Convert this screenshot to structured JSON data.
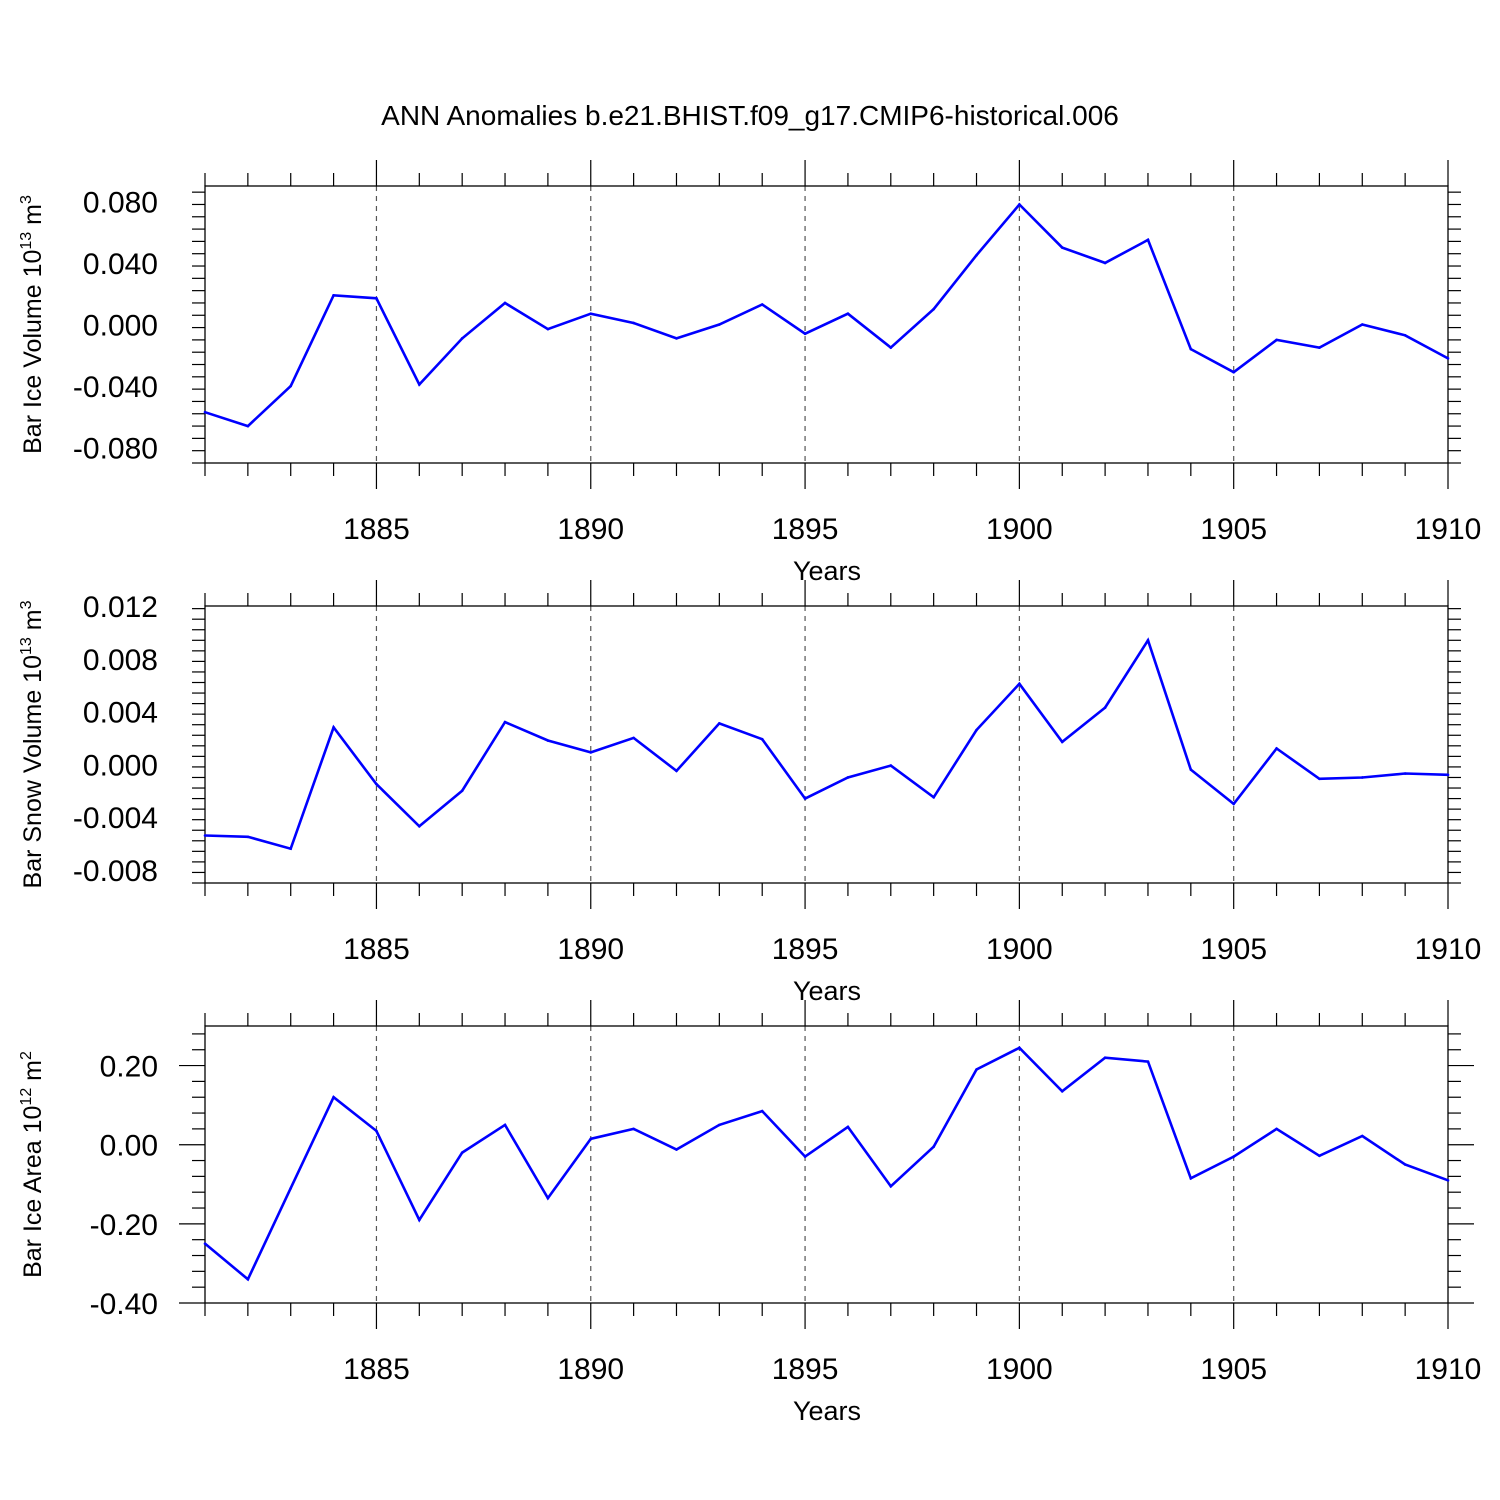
{
  "title": "ANN Anomalies b.e21.BHIST.f09_g17.CMIP6-historical.006",
  "colors": {
    "line": "#0000ff",
    "axis": "#000000",
    "grid": "#555555"
  },
  "chart_data": [
    {
      "type": "line",
      "title": "ANN Anomalies b.e21.BHIST.f09_g17.CMIP6-historical.006",
      "xlabel": "Years",
      "ylabel": {
        "text": "Bar Ice Volume 10",
        "exp": "13",
        "unit": " m",
        "unit_exp": "3"
      },
      "xlim": [
        1881,
        1910
      ],
      "ylim": [
        -0.09,
        0.09
      ],
      "xticks": [
        1885,
        1890,
        1895,
        1900,
        1905,
        1910
      ],
      "xtick_labels": [
        "1885",
        "1890",
        "1895",
        "1900",
        "1905",
        "1910"
      ],
      "yticks": [
        -0.08,
        -0.04,
        0.0,
        0.04,
        0.08
      ],
      "ytick_labels": [
        "-0.080",
        "-0.040",
        "0.000",
        "0.040",
        "0.080"
      ],
      "grid": "vertical-dashed-at-major",
      "x": [
        1881,
        1882,
        1883,
        1884,
        1885,
        1886,
        1887,
        1888,
        1889,
        1890,
        1891,
        1892,
        1893,
        1894,
        1895,
        1896,
        1897,
        1898,
        1899,
        1900,
        1901,
        1902,
        1903,
        1904,
        1905,
        1906,
        1907,
        1908,
        1909,
        1910
      ],
      "series": [
        {
          "name": "Bar Ice Volume",
          "values": [
            -0.057,
            -0.066,
            -0.04,
            0.019,
            0.017,
            -0.039,
            -0.009,
            0.014,
            -0.003,
            0.007,
            0.001,
            -0.009,
            0.0,
            0.013,
            -0.006,
            0.007,
            -0.015,
            0.01,
            0.045,
            0.078,
            0.05,
            0.04,
            0.055,
            -0.016,
            -0.031,
            -0.01,
            -0.015,
            0.0,
            -0.007,
            -0.022
          ]
        }
      ]
    },
    {
      "type": "line",
      "xlabel": "Years",
      "ylabel": {
        "text": "Bar Snow Volume 10",
        "exp": "13",
        "unit": " m",
        "unit_exp": "3"
      },
      "xlim": [
        1881,
        1910
      ],
      "ylim": [
        -0.009,
        0.012
      ],
      "xticks": [
        1885,
        1890,
        1895,
        1900,
        1905,
        1910
      ],
      "xtick_labels": [
        "1885",
        "1890",
        "1895",
        "1900",
        "1905",
        "1910"
      ],
      "yticks": [
        -0.008,
        -0.004,
        0.0,
        0.004,
        0.008,
        0.012
      ],
      "ytick_labels": [
        "-0.008",
        "-0.004",
        "0.000",
        "0.004",
        "0.008",
        "0.012"
      ],
      "grid": "vertical-dashed-at-major",
      "x": [
        1881,
        1882,
        1883,
        1884,
        1885,
        1886,
        1887,
        1888,
        1889,
        1890,
        1891,
        1892,
        1893,
        1894,
        1895,
        1896,
        1897,
        1898,
        1899,
        1900,
        1901,
        1902,
        1903,
        1904,
        1905,
        1906,
        1907,
        1908,
        1909,
        1910
      ],
      "series": [
        {
          "name": "Bar Snow Volume",
          "values": [
            -0.0054,
            -0.0055,
            -0.0064,
            0.0028,
            -0.0015,
            -0.0047,
            -0.002,
            0.0032,
            0.0018,
            0.0009,
            0.002,
            -0.0005,
            0.0031,
            0.0019,
            -0.0026,
            -0.001,
            -0.0001,
            -0.0025,
            0.0026,
            0.0061,
            0.0017,
            0.0043,
            0.0094,
            -0.0004,
            -0.003,
            0.0012,
            -0.0011,
            -0.001,
            -0.0007,
            -0.0008
          ]
        }
      ]
    },
    {
      "type": "line",
      "xlabel": "Years",
      "ylabel": {
        "text": "Bar Ice Area 10",
        "exp": "12",
        "unit": " m",
        "unit_exp": "2"
      },
      "xlim": [
        1881,
        1910
      ],
      "ylim": [
        -0.4,
        0.3
      ],
      "xticks": [
        1885,
        1890,
        1895,
        1900,
        1905,
        1910
      ],
      "xtick_labels": [
        "1885",
        "1890",
        "1895",
        "1900",
        "1905",
        "1910"
      ],
      "yticks": [
        -0.4,
        -0.2,
        0.0,
        0.2
      ],
      "ytick_labels": [
        "-0.40",
        "-0.20",
        "0.00",
        "0.20"
      ],
      "grid": "vertical-dashed-at-major",
      "x": [
        1881,
        1882,
        1883,
        1884,
        1885,
        1886,
        1887,
        1888,
        1889,
        1890,
        1891,
        1892,
        1893,
        1894,
        1895,
        1896,
        1897,
        1898,
        1899,
        1900,
        1901,
        1902,
        1903,
        1904,
        1905,
        1906,
        1907,
        1908,
        1909,
        1910
      ],
      "series": [
        {
          "name": "Bar Ice Area",
          "values": [
            -0.25,
            -0.34,
            -0.11,
            0.12,
            0.035,
            -0.19,
            -0.02,
            0.05,
            -0.135,
            0.015,
            0.04,
            -0.012,
            0.05,
            0.085,
            -0.03,
            0.045,
            -0.105,
            -0.005,
            0.19,
            0.245,
            0.135,
            0.22,
            0.21,
            -0.085,
            -0.03,
            0.04,
            -0.028,
            0.022,
            -0.05,
            -0.09
          ]
        }
      ]
    }
  ]
}
